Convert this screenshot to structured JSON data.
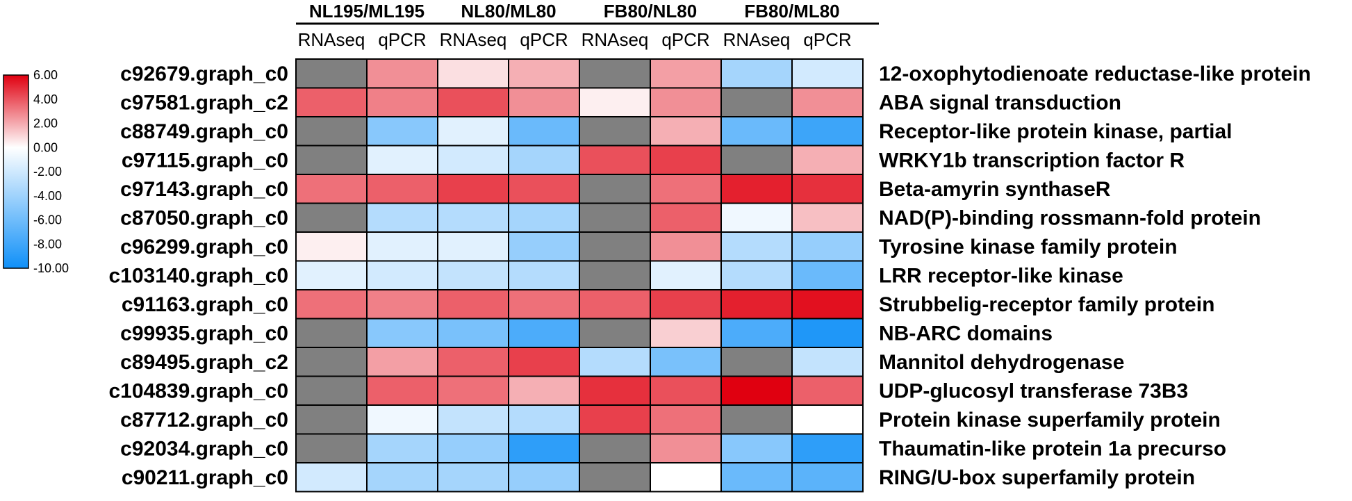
{
  "chart_data": {
    "type": "heatmap",
    "comparisons": [
      "NL195/ML195",
      "NL80/ML80",
      "FB80/NL80",
      "FB80/ML80"
    ],
    "methods": [
      "RNAseq",
      "qPCR"
    ],
    "columns": [
      "NL195/ML195 RNAseq",
      "NL195/ML195 qPCR",
      "NL80/ML80 RNAseq",
      "NL80/ML80 qPCR",
      "FB80/NL80 RNAseq",
      "FB80/NL80 qPCR",
      "FB80/ML80 RNAseq",
      "FB80/ML80 qPCR"
    ],
    "genes": [
      "c92679.graph_c0",
      "c97581.graph_c2",
      "c88749.graph_c0",
      "c97115.graph_c0",
      "c97143.graph_c0",
      "c87050.graph_c0",
      "c96299.graph_c0",
      "c103140.graph_c0",
      "c91163.graph_c0",
      "c99935.graph_c0",
      "c89495.graph_c2",
      "c104839.graph_c0",
      "c87712.graph_c0",
      "c92034.graph_c0",
      "c90211.graph_c0"
    ],
    "annotations": [
      "12-oxophytodienoate reductase-like protein",
      "ABA signal transduction",
      "Receptor-like protein kinase, partial",
      "WRKY1b transcription factor R",
      "Beta-amyrin synthaseR",
      "NAD(P)-binding rossmann-fold protein",
      "Tyrosine kinase family protein",
      "LRR receptor-like kinase",
      "Strubbelig-receptor family protein",
      "NB-ARC domains",
      "Mannitol dehydrogenase",
      "UDP-glucosyl transferase 73B3",
      "Protein kinase superfamily protein",
      "Thaumatin-like protein 1a precurso",
      "RING/U-box superfamily protein"
    ],
    "values": [
      [
        null,
        1.5,
        -1.0,
        0.5,
        null,
        1.0,
        -5.0,
        -3.5
      ],
      [
        3.0,
        2.0,
        3.5,
        1.5,
        -1.5,
        1.5,
        null,
        1.5
      ],
      [
        null,
        -6.0,
        -3.0,
        -7.0,
        null,
        0.5,
        -7.0,
        -8.5
      ],
      [
        null,
        -3.0,
        -3.5,
        -5.0,
        3.5,
        4.0,
        null,
        0.5
      ],
      [
        2.5,
        3.0,
        4.0,
        3.5,
        null,
        2.5,
        5.0,
        4.5
      ],
      [
        null,
        -4.5,
        -4.5,
        -5.0,
        null,
        3.0,
        -2.5,
        0.0
      ],
      [
        -1.5,
        -3.0,
        -3.0,
        -5.5,
        null,
        1.5,
        -4.5,
        -5.5
      ],
      [
        -3.0,
        -3.5,
        -4.0,
        -4.5,
        null,
        -3.0,
        -4.5,
        -7.0
      ],
      [
        2.5,
        2.0,
        3.0,
        2.5,
        3.0,
        4.0,
        5.0,
        5.5
      ],
      [
        null,
        -6.0,
        -6.5,
        -8.0,
        null,
        -0.5,
        -8.0,
        -9.5
      ],
      [
        null,
        1.0,
        3.0,
        4.0,
        -4.5,
        -6.5,
        null,
        -4.0
      ],
      [
        null,
        3.0,
        2.5,
        0.5,
        4.5,
        3.5,
        6.0,
        3.0
      ],
      [
        null,
        -2.5,
        -4.0,
        -4.5,
        4.0,
        2.5,
        null,
        -2.0
      ],
      [
        null,
        -5.0,
        -5.5,
        -9.0,
        null,
        1.5,
        -6.0,
        -9.0
      ],
      [
        -3.5,
        -5.0,
        -5.0,
        -5.5,
        null,
        -2.0,
        -7.0,
        -7.5
      ]
    ],
    "missing_color": "#808080",
    "colorbar": {
      "min": -10,
      "max": 6,
      "ticks": [
        "6.00",
        "4.00",
        "2.00",
        "0.00",
        "-2.00",
        "-4.00",
        "-6.00",
        "-8.00",
        "-10.00"
      ],
      "colors": {
        "high": "#e00010",
        "mid": "#ffffff",
        "low": "#1090f8"
      }
    }
  }
}
